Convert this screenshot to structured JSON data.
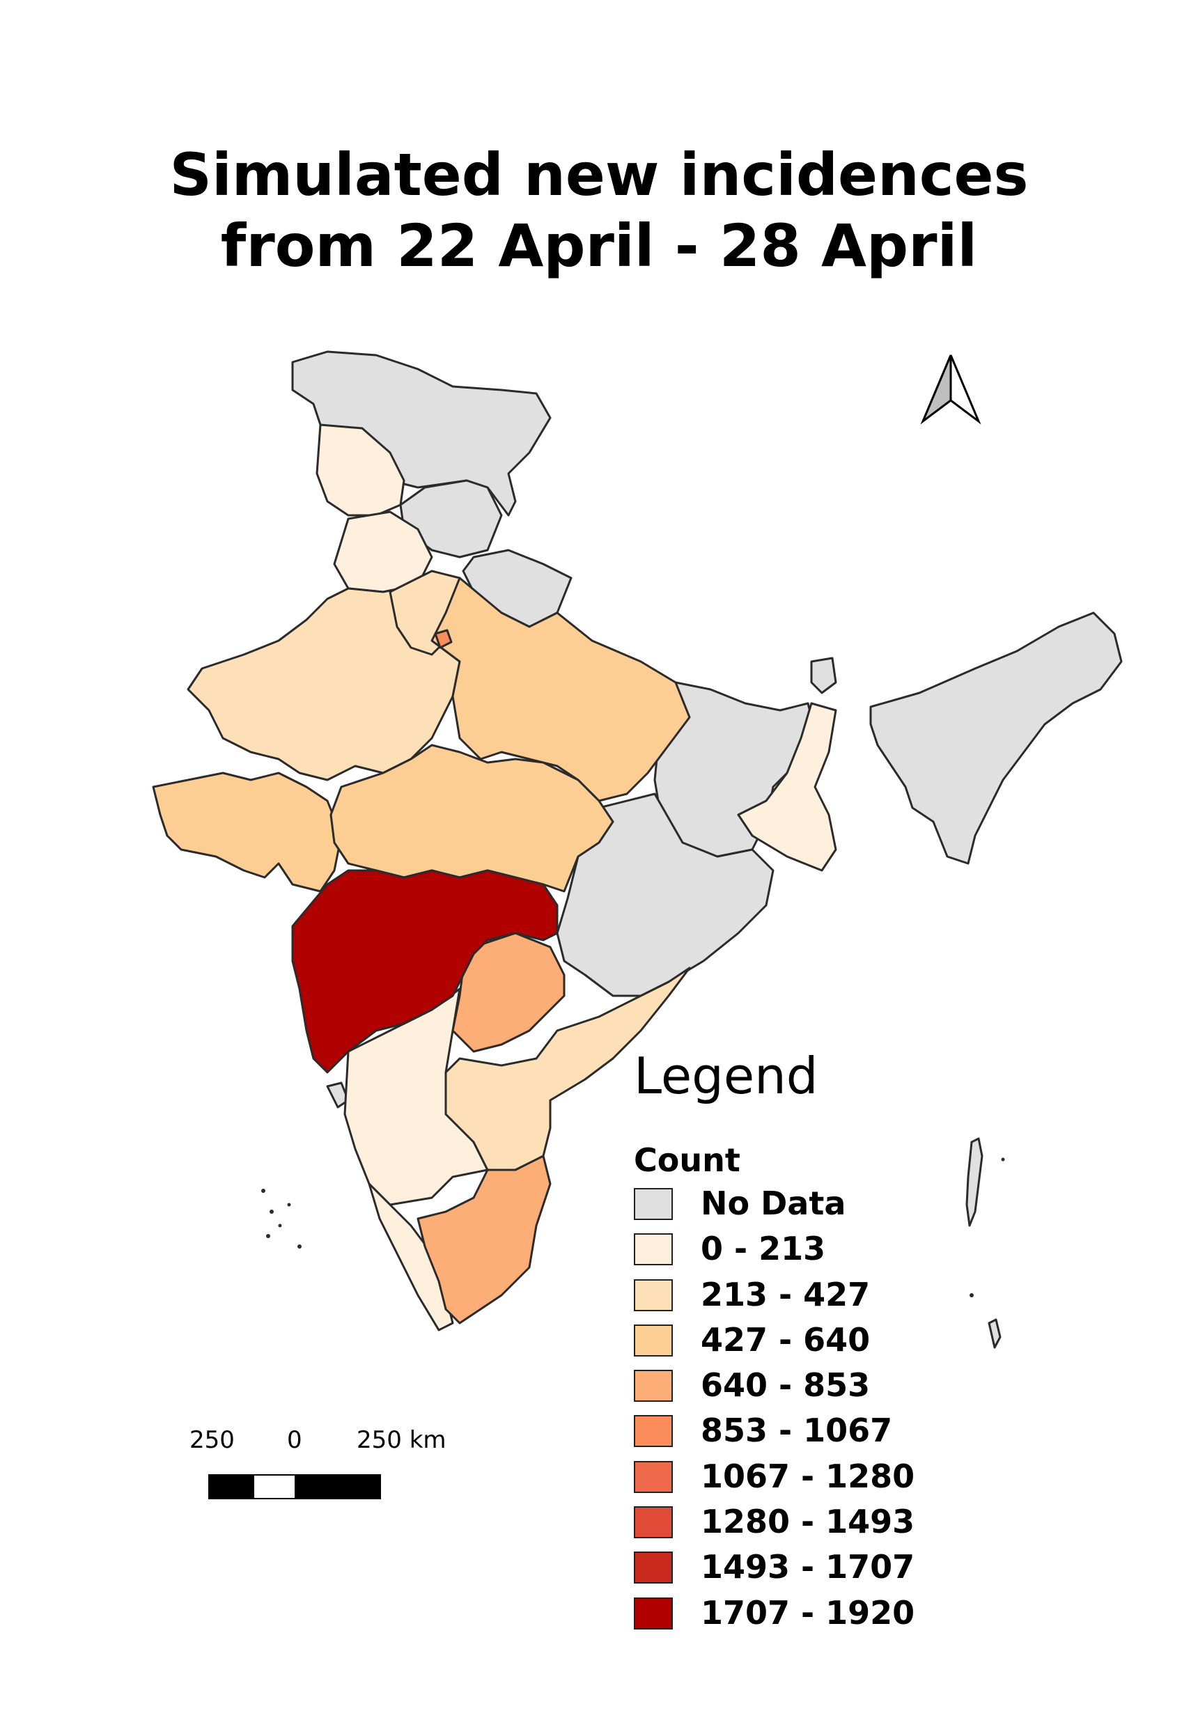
{
  "title": {
    "line1": "Simulated new incidences",
    "line2": "from 22 April - 28 April"
  },
  "north_arrow": {
    "icon": "north-arrow-icon"
  },
  "legend": {
    "title": "Legend",
    "subtitle": "Count",
    "items": [
      {
        "label": "No Data",
        "color": "#e0e0e0"
      },
      {
        "label": "0 - 213",
        "color": "#fff0de"
      },
      {
        "label": "213 - 427",
        "color": "#fee0b8"
      },
      {
        "label": "427 - 640",
        "color": "#fdce93"
      },
      {
        "label": "640 - 853",
        "color": "#fcae76"
      },
      {
        "label": "853 - 1067",
        "color": "#fb8d5a"
      },
      {
        "label": "1067 - 1280",
        "color": "#ef6a4a"
      },
      {
        "label": "1280 - 1493",
        "color": "#e04a36"
      },
      {
        "label": "1493 - 1707",
        "color": "#c92a1e"
      },
      {
        "label": "1707 - 1920",
        "color": "#b10000"
      }
    ]
  },
  "scale_bar": {
    "left_label": "250",
    "mid_label": "0",
    "right_label": "250 km"
  },
  "colors": {
    "outline": "#2b2b2b"
  }
}
